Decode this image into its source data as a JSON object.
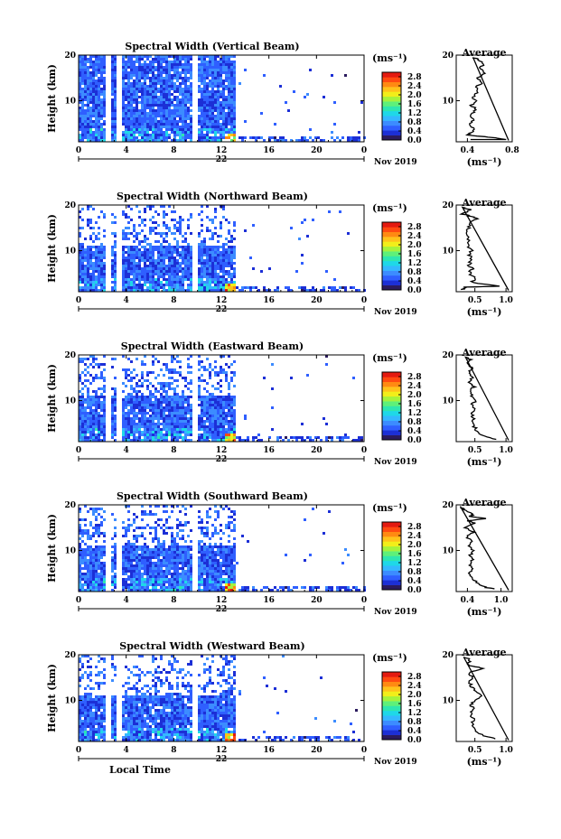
{
  "colors": {
    "scale": [
      "#2b1b5e",
      "#1c2fd6",
      "#2f5fff",
      "#3c8cff",
      "#34b8ff",
      "#1fd8e8",
      "#2ee6b0",
      "#5ef07a",
      "#a6f23c",
      "#f2ee1a",
      "#ffc21a",
      "#ff8a12",
      "#ff4a10",
      "#e41a10"
    ],
    "background": "#ffffff"
  },
  "chart_data": [
    {
      "type": "heatmap",
      "title": "Spectral Width (Vertical Beam)",
      "ylabel": "Height (km)",
      "yticks": [
        "20",
        "10"
      ],
      "ylim": [
        1,
        20
      ],
      "xticks": [
        "0",
        "4",
        "8",
        "12",
        "16",
        "20",
        "0"
      ],
      "xlim": [
        0,
        24
      ],
      "date_mark": "22",
      "month_label": "Nov 2019",
      "colorbar": {
        "unit": "(ms⁻¹)",
        "ticks": [
          "0.0",
          "0.4",
          "0.8",
          "1.2",
          "1.6",
          "2.0",
          "2.4",
          "2.8"
        ],
        "range": [
          0,
          3.0
        ]
      },
      "average": {
        "title": "Average",
        "xticks": [
          "0.4",
          "0.8"
        ],
        "xlim": [
          0.3,
          0.8
        ],
        "xlabel": "(ms⁻¹)",
        "profile": [
          [
            0.42,
            1.5
          ],
          [
            0.4,
            2.5
          ],
          [
            0.44,
            3
          ],
          [
            0.45,
            4
          ],
          [
            0.42,
            5
          ],
          [
            0.46,
            6
          ],
          [
            0.43,
            7
          ],
          [
            0.48,
            8
          ],
          [
            0.44,
            9
          ],
          [
            0.47,
            10
          ],
          [
            0.45,
            11
          ],
          [
            0.5,
            12
          ],
          [
            0.47,
            13
          ],
          [
            0.53,
            14
          ],
          [
            0.5,
            15
          ],
          [
            0.56,
            16
          ],
          [
            0.51,
            17
          ],
          [
            0.55,
            18
          ],
          [
            0.5,
            19
          ],
          [
            0.45,
            19.5
          ],
          [
            0.6,
            2.0
          ],
          [
            0.75,
            1.5
          ]
        ]
      }
    },
    {
      "type": "heatmap",
      "title": "Spectral Width (Northward Beam)",
      "ylabel": "Height (km)",
      "yticks": [
        "20",
        "10"
      ],
      "ylim": [
        1,
        20
      ],
      "xticks": [
        "0",
        "4",
        "8",
        "12",
        "16",
        "20",
        "0"
      ],
      "xlim": [
        0,
        24
      ],
      "date_mark": "22",
      "month_label": "Nov 2019",
      "colorbar": {
        "unit": "(ms⁻¹)",
        "ticks": [
          "0.0",
          "0.4",
          "0.8",
          "1.2",
          "1.6",
          "2.0",
          "2.4",
          "2.8"
        ],
        "range": [
          0,
          3.0
        ]
      },
      "average": {
        "title": "Average",
        "xticks": [
          "0.5",
          "1.0"
        ],
        "xlim": [
          0.2,
          1.1
        ],
        "xlabel": "(ms⁻¹)",
        "profile": [
          [
            0.3,
            1.5
          ],
          [
            0.35,
            2
          ],
          [
            0.45,
            3
          ],
          [
            0.5,
            4
          ],
          [
            0.42,
            5
          ],
          [
            0.45,
            6
          ],
          [
            0.4,
            7
          ],
          [
            0.45,
            8
          ],
          [
            0.42,
            9
          ],
          [
            0.45,
            10
          ],
          [
            0.4,
            11
          ],
          [
            0.38,
            12
          ],
          [
            0.42,
            13
          ],
          [
            0.36,
            14
          ],
          [
            0.42,
            15
          ],
          [
            0.4,
            16
          ],
          [
            0.55,
            17
          ],
          [
            0.45,
            17.5
          ],
          [
            0.3,
            18
          ],
          [
            0.42,
            19
          ],
          [
            0.3,
            19.5
          ],
          [
            0.9,
            2.2
          ]
        ]
      }
    },
    {
      "type": "heatmap",
      "title": "Spectral Width (Eastward Beam)",
      "ylabel": "Height (km)",
      "yticks": [
        "20",
        "10"
      ],
      "ylim": [
        1,
        20
      ],
      "xticks": [
        "0",
        "4",
        "8",
        "12",
        "16",
        "20",
        "0"
      ],
      "xlim": [
        0,
        24
      ],
      "date_mark": "22",
      "month_label": "Nov 2019",
      "colorbar": {
        "unit": "(ms⁻¹)",
        "ticks": [
          "0.0",
          "0.4",
          "0.8",
          "1.2",
          "1.6",
          "2.0",
          "2.4",
          "2.8"
        ],
        "range": [
          0,
          3.0
        ]
      },
      "average": {
        "title": "Average",
        "xticks": [
          "0.5",
          "1.0"
        ],
        "xlim": [
          0.2,
          1.1
        ],
        "xlabel": "(ms⁻¹)",
        "profile": [
          [
            0.85,
            1.5
          ],
          [
            0.7,
            2
          ],
          [
            0.55,
            3
          ],
          [
            0.5,
            4
          ],
          [
            0.46,
            5
          ],
          [
            0.48,
            6
          ],
          [
            0.44,
            7
          ],
          [
            0.48,
            8
          ],
          [
            0.45,
            9
          ],
          [
            0.5,
            10
          ],
          [
            0.46,
            11
          ],
          [
            0.44,
            12
          ],
          [
            0.48,
            13
          ],
          [
            0.42,
            14
          ],
          [
            0.45,
            15
          ],
          [
            0.4,
            16
          ],
          [
            0.45,
            17
          ],
          [
            0.38,
            18
          ],
          [
            0.42,
            19
          ],
          [
            0.35,
            19.5
          ]
        ]
      }
    },
    {
      "type": "heatmap",
      "title": "Spectral Width (Southward Beam)",
      "ylabel": "Height (km)",
      "yticks": [
        "20",
        "10"
      ],
      "ylim": [
        1,
        20
      ],
      "xticks": [
        "0",
        "4",
        "8",
        "12",
        "16",
        "20",
        "0"
      ],
      "xlim": [
        0,
        24
      ],
      "date_mark": "22",
      "month_label": "Nov 2019",
      "colorbar": {
        "unit": "(ms⁻¹)",
        "ticks": [
          "0.0",
          "0.4",
          "0.8",
          "1.2",
          "1.6",
          "2.0",
          "2.4",
          "2.8"
        ],
        "range": [
          0,
          3.0
        ]
      },
      "average": {
        "title": "Average",
        "xticks": [
          "0.4",
          "1.0"
        ],
        "xlim": [
          0.2,
          1.2
        ],
        "xlabel": "(ms⁻¹)",
        "profile": [
          [
            0.9,
            1.5
          ],
          [
            0.7,
            2
          ],
          [
            0.55,
            3
          ],
          [
            0.5,
            4
          ],
          [
            0.45,
            5
          ],
          [
            0.5,
            6
          ],
          [
            0.44,
            7
          ],
          [
            0.48,
            8
          ],
          [
            0.45,
            9
          ],
          [
            0.5,
            10
          ],
          [
            0.45,
            11
          ],
          [
            0.48,
            12
          ],
          [
            0.4,
            13
          ],
          [
            0.5,
            14
          ],
          [
            0.38,
            15
          ],
          [
            0.55,
            16
          ],
          [
            0.42,
            16.5
          ],
          [
            0.75,
            17
          ],
          [
            0.45,
            17.5
          ],
          [
            0.5,
            18
          ],
          [
            0.35,
            19
          ],
          [
            0.28,
            19.5
          ]
        ]
      }
    },
    {
      "type": "heatmap",
      "title": "Spectral Width (Westward Beam)",
      "ylabel": "Height (km)",
      "yticks": [
        "20",
        "10"
      ],
      "ylim": [
        1,
        20
      ],
      "xticks": [
        "0",
        "4",
        "8",
        "12",
        "16",
        "20",
        "0"
      ],
      "xlim": [
        0,
        24
      ],
      "date_mark": "22",
      "month_label": "Nov 2019",
      "xlabel": "Local Time",
      "colorbar": {
        "unit": "(ms⁻¹)",
        "ticks": [
          "0.0",
          "0.4",
          "0.8",
          "1.2",
          "1.6",
          "2.0",
          "2.4",
          "2.8"
        ],
        "range": [
          0,
          3.0
        ]
      },
      "average": {
        "title": "Average",
        "xticks": [
          "0.5",
          "1.0"
        ],
        "xlim": [
          0.2,
          1.1
        ],
        "xlabel": "(ms⁻¹)",
        "profile": [
          [
            0.85,
            1.5
          ],
          [
            0.7,
            2
          ],
          [
            0.55,
            3
          ],
          [
            0.5,
            4
          ],
          [
            0.45,
            5
          ],
          [
            0.48,
            6
          ],
          [
            0.43,
            7
          ],
          [
            0.47,
            8
          ],
          [
            0.44,
            9
          ],
          [
            0.5,
            10
          ],
          [
            0.6,
            11
          ],
          [
            0.5,
            12
          ],
          [
            0.45,
            13
          ],
          [
            0.42,
            14
          ],
          [
            0.45,
            15
          ],
          [
            0.4,
            16
          ],
          [
            0.65,
            17
          ],
          [
            0.45,
            17.5
          ],
          [
            0.38,
            18
          ],
          [
            0.42,
            19
          ],
          [
            0.32,
            19.5
          ]
        ]
      }
    }
  ]
}
